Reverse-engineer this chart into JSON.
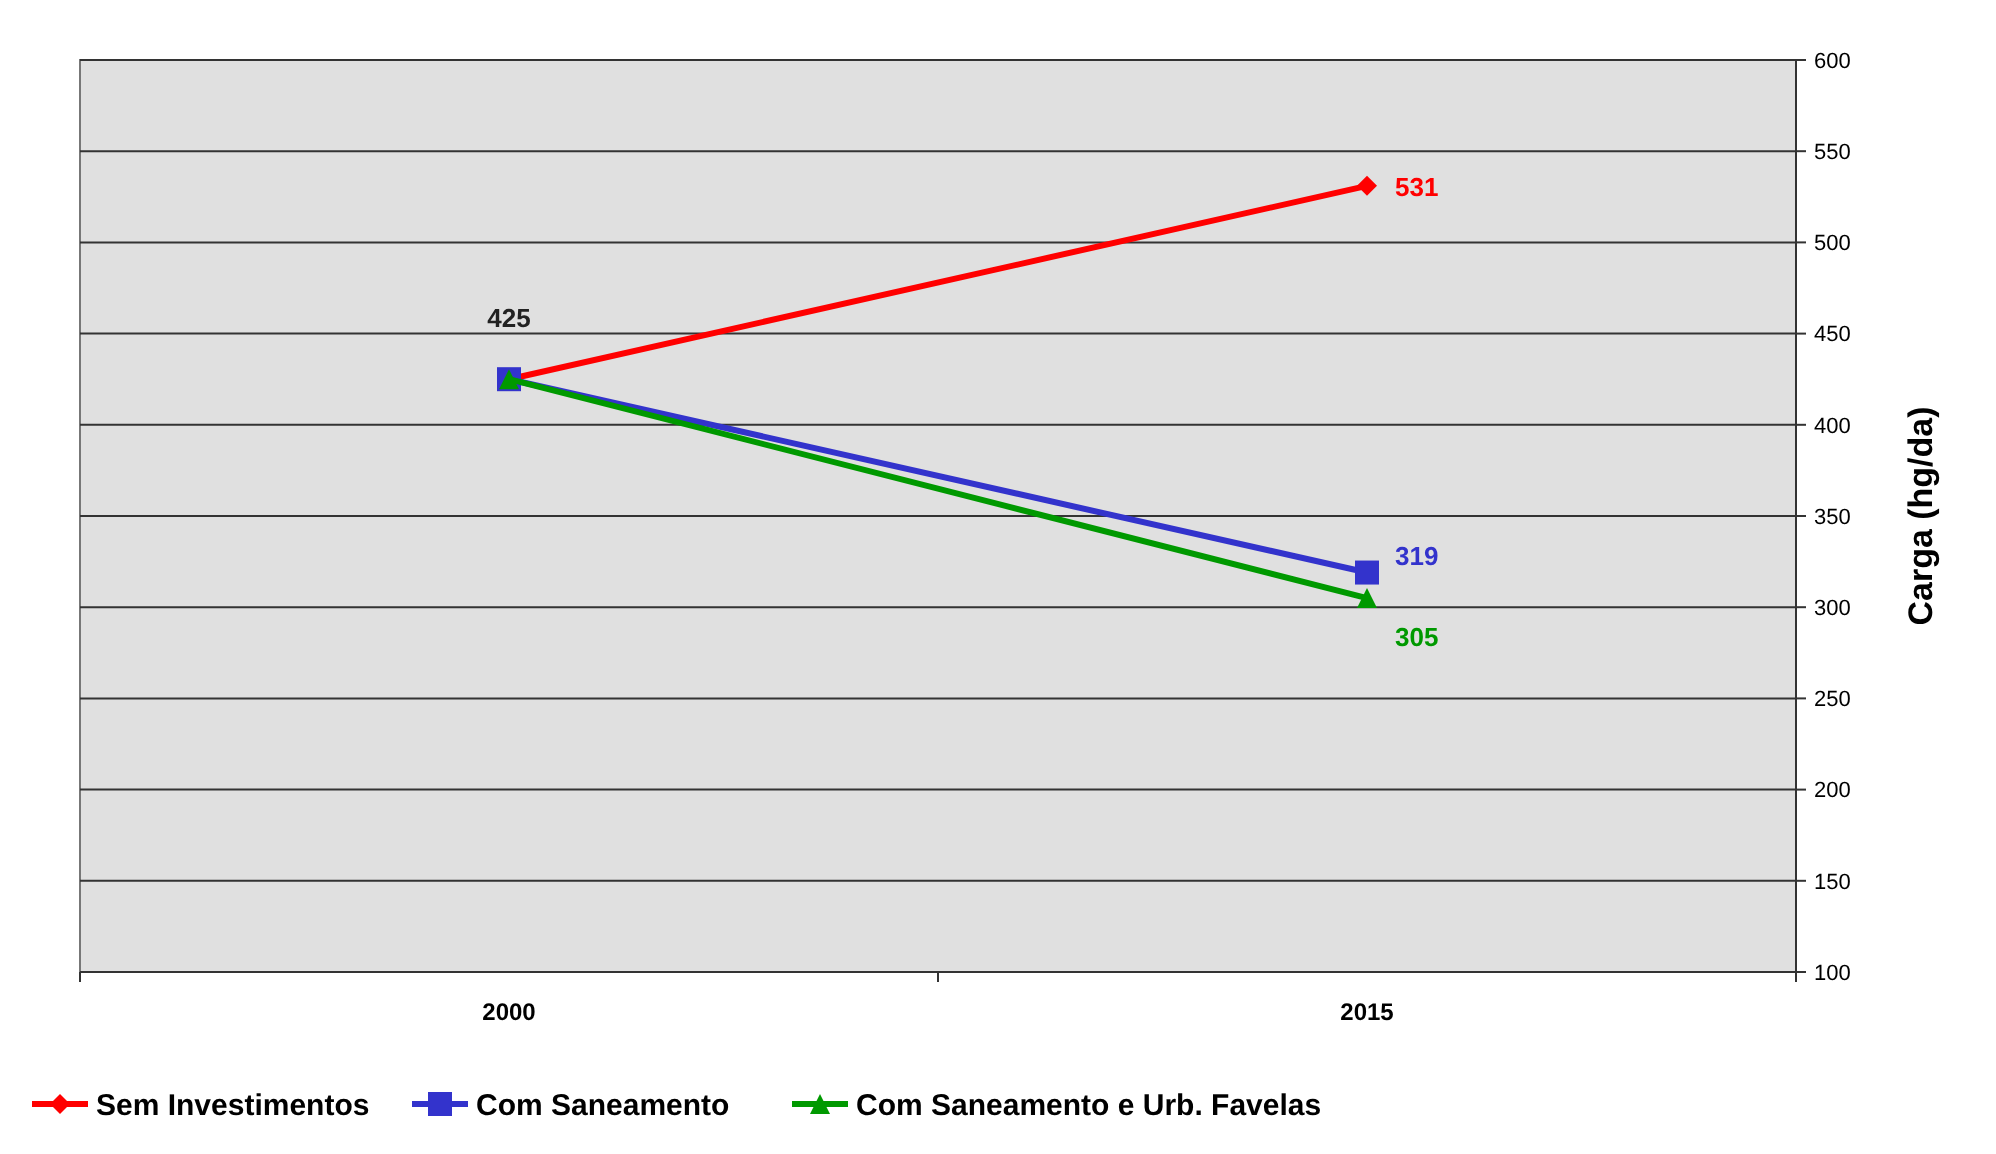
{
  "chart_data": {
    "type": "line",
    "ylabel": "Carga (hg/da)",
    "categories": [
      "2000",
      "2015"
    ],
    "series": [
      {
        "name": "Sem Investimentos",
        "color": "#ff0000",
        "marker": "diamond",
        "values": [
          425,
          531
        ],
        "value_labels": [
          "425",
          "531"
        ]
      },
      {
        "name": "Com Saneamento",
        "color": "#3333cc",
        "marker": "square",
        "values": [
          425,
          319
        ],
        "value_labels": [
          null,
          "319"
        ]
      },
      {
        "name": "Com Saneamento e Urb. Favelas",
        "color": "#009900",
        "marker": "triangle",
        "values": [
          425,
          305
        ],
        "value_labels": [
          null,
          "305"
        ]
      }
    ],
    "ylim": [
      100,
      600
    ],
    "yticks": [
      100,
      150,
      200,
      250,
      300,
      350,
      400,
      450,
      500,
      550,
      600
    ],
    "grid": "y",
    "legend": "bottom"
  }
}
